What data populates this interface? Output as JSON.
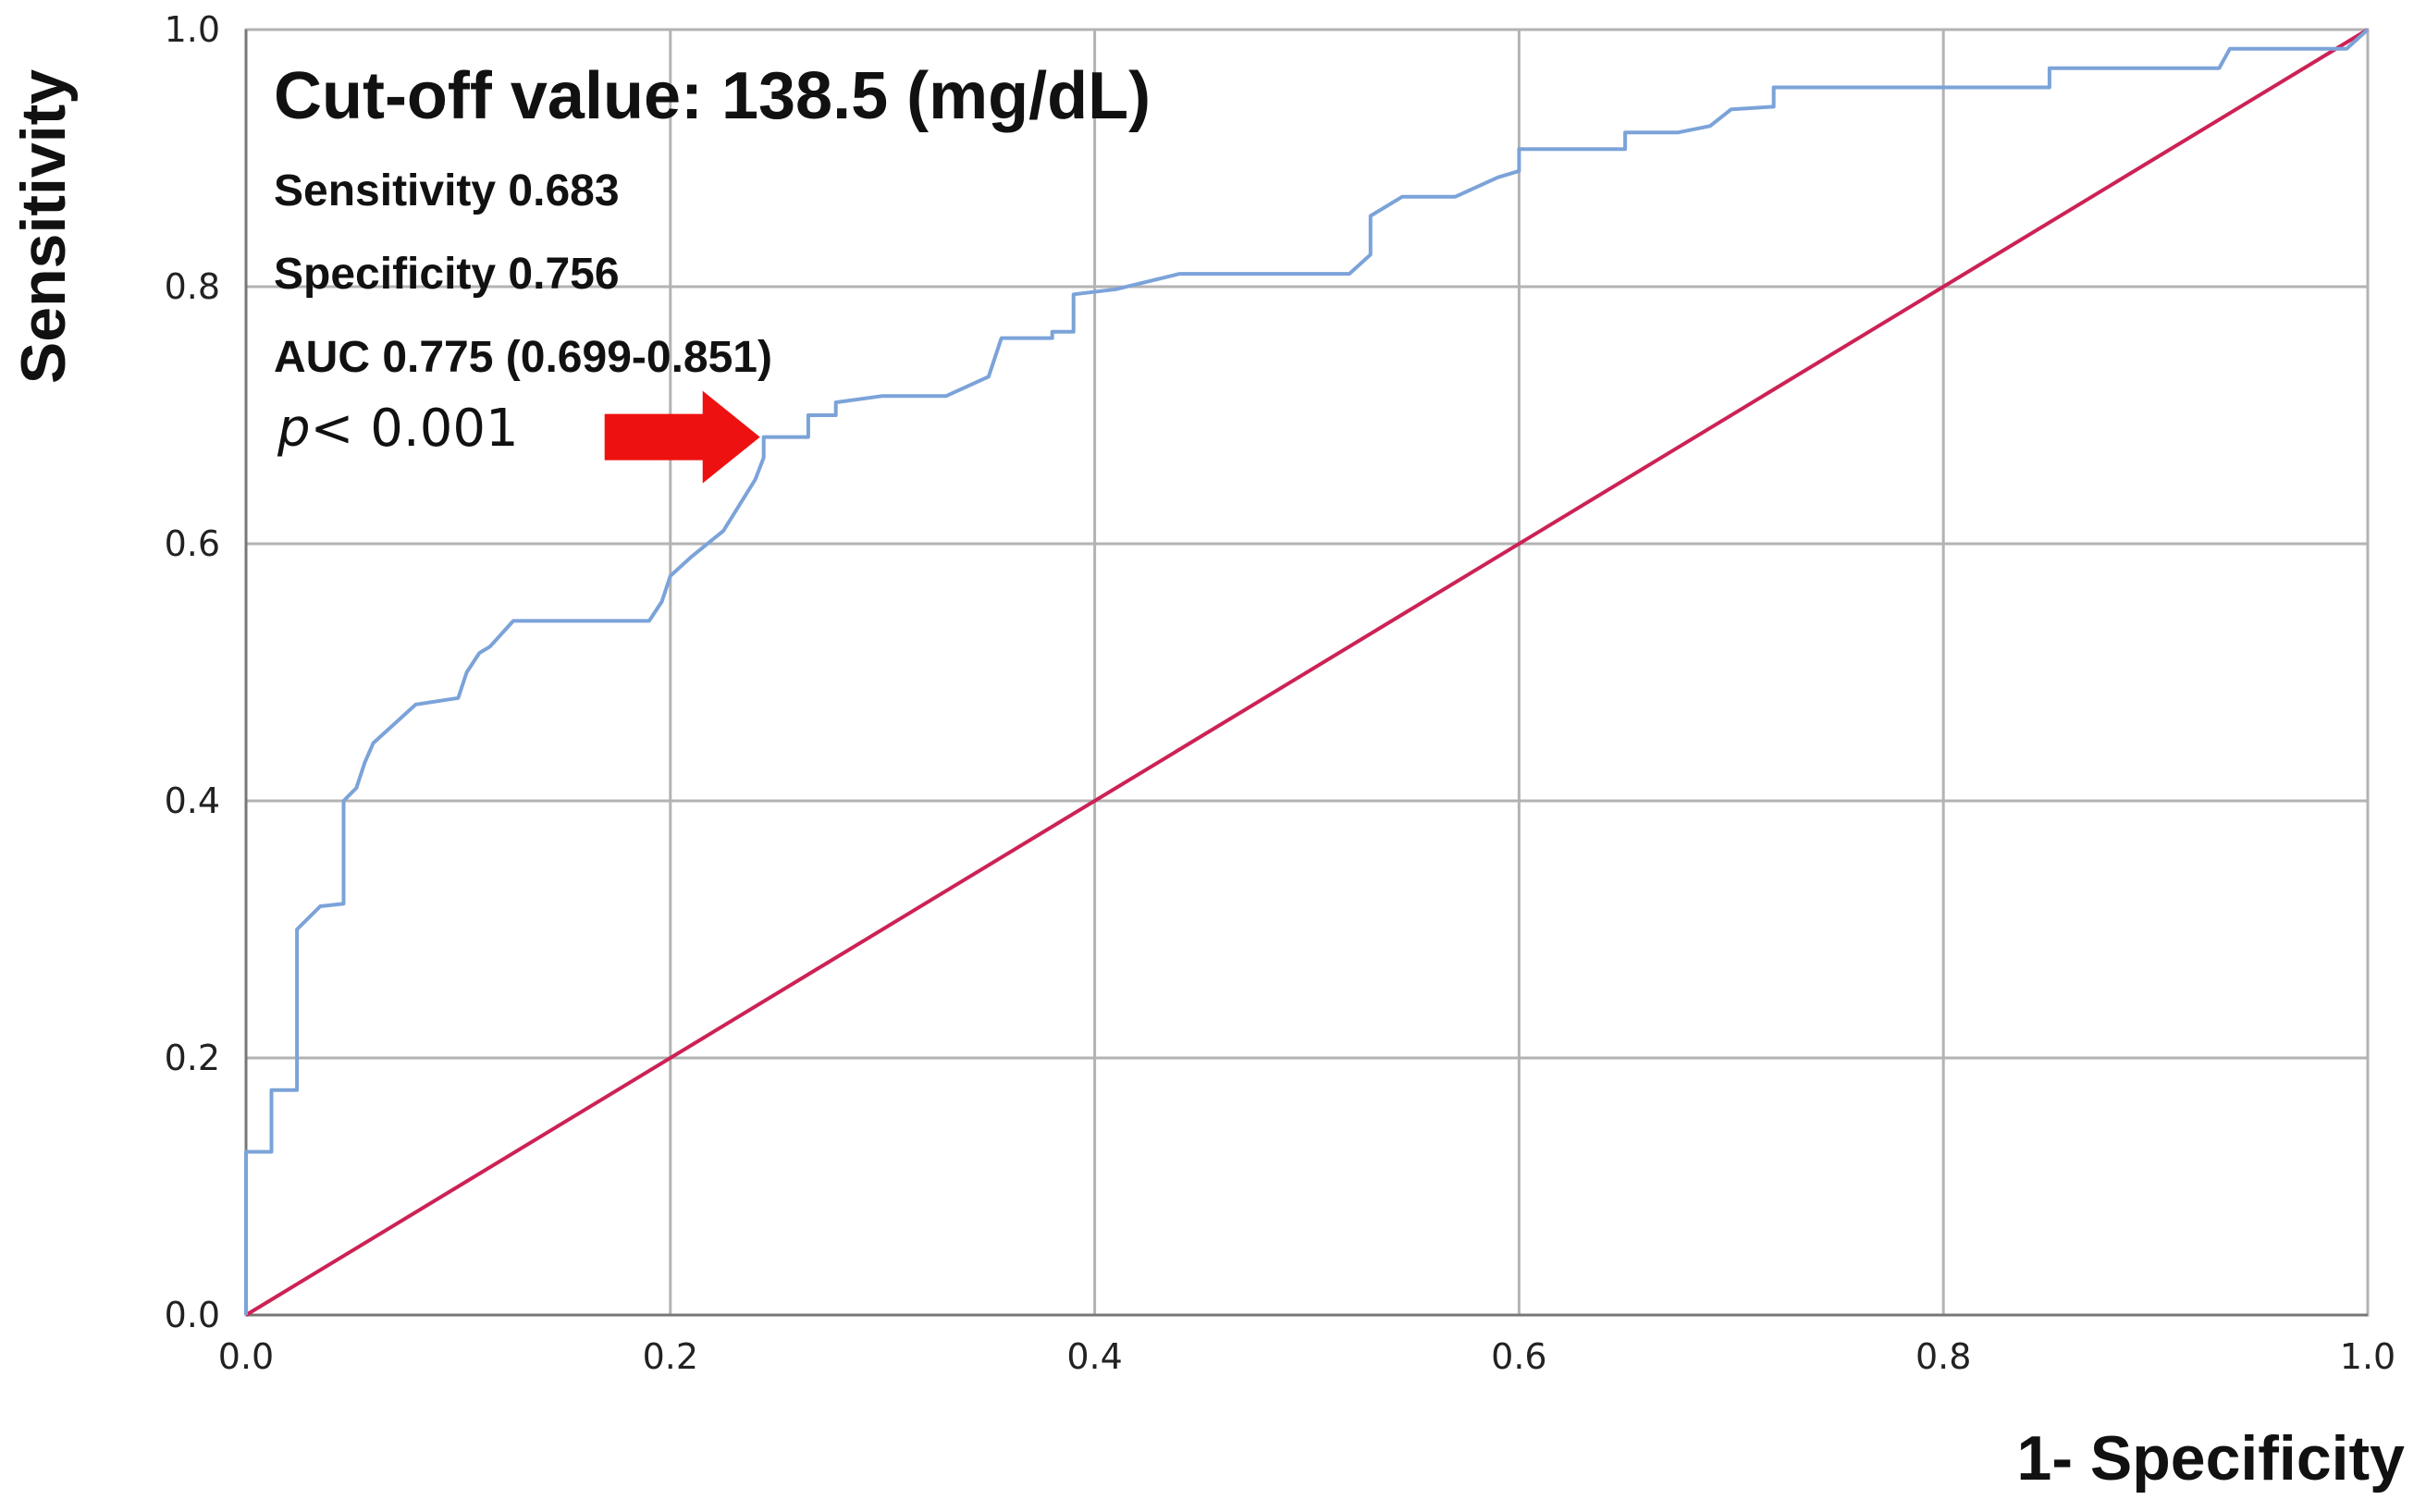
{
  "chart_data": {
    "type": "line",
    "title": "",
    "xlabel": "1- Specificity",
    "ylabel": "Sensitivity",
    "xlim": [
      0,
      1
    ],
    "ylim": [
      0,
      1
    ],
    "xticks": [
      "0.0",
      "0.2",
      "0.4",
      "0.6",
      "0.8",
      "1.0"
    ],
    "yticks": [
      "0.0",
      "0.2",
      "0.4",
      "0.6",
      "0.8",
      "1.0"
    ],
    "grid": true,
    "legend": "none",
    "colors": {
      "roc": "#7ba3d9",
      "reference": "#cc2255",
      "arrow": "#ee1111",
      "grid": "#b3b3b3"
    },
    "annotations": {
      "cutoff": "Cut-off value: 138.5 (mg/dL)",
      "sensitivity": "Sensitivity 0.683",
      "specificity": "Specificity 0.756",
      "auc": "AUC 0.775 (0.699-0.851)",
      "p_symbol": "p",
      "p_rest": "< 0.001"
    },
    "cutoff_point": {
      "x": 0.244,
      "y": 0.683
    },
    "series": [
      {
        "x": [
          0,
          0,
          0.012,
          0.012,
          0.024,
          0.024,
          0.035,
          0.035,
          0.046,
          0.046,
          0.052,
          0.056,
          0.06,
          0.07,
          0.07,
          0.08,
          0.08,
          0.1,
          0.104,
          0.11,
          0.115,
          0.126,
          0.19,
          0.196,
          0.2,
          0.21,
          0.225,
          0.24,
          0.244,
          0.244,
          0.265,
          0.265,
          0.278,
          0.278,
          0.3,
          0.33,
          0.35,
          0.356,
          0.38,
          0.38,
          0.39,
          0.39,
          0.41,
          0.44,
          0.52,
          0.53,
          0.53,
          0.545,
          0.57,
          0.59,
          0.6,
          0.6,
          0.65,
          0.65,
          0.675,
          0.69,
          0.7,
          0.72,
          0.72,
          0.85,
          0.85,
          0.93,
          0.935,
          0.99,
          1
        ],
        "y": [
          0,
          0.127,
          0.127,
          0.175,
          0.175,
          0.3,
          0.318,
          0.318,
          0.32,
          0.4,
          0.41,
          0.43,
          0.445,
          0.46,
          0.46,
          0.475,
          0.475,
          0.48,
          0.5,
          0.515,
          0.52,
          0.54,
          0.54,
          0.555,
          0.575,
          0.59,
          0.61,
          0.65,
          0.667,
          0.683,
          0.683,
          0.7,
          0.7,
          0.71,
          0.715,
          0.715,
          0.73,
          0.76,
          0.76,
          0.765,
          0.765,
          0.794,
          0.798,
          0.81,
          0.81,
          0.825,
          0.855,
          0.87,
          0.87,
          0.885,
          0.89,
          0.907,
          0.907,
          0.92,
          0.92,
          0.925,
          0.938,
          0.94,
          0.955,
          0.955,
          0.97,
          0.97,
          0.985,
          0.985,
          1
        ]
      }
    ]
  }
}
